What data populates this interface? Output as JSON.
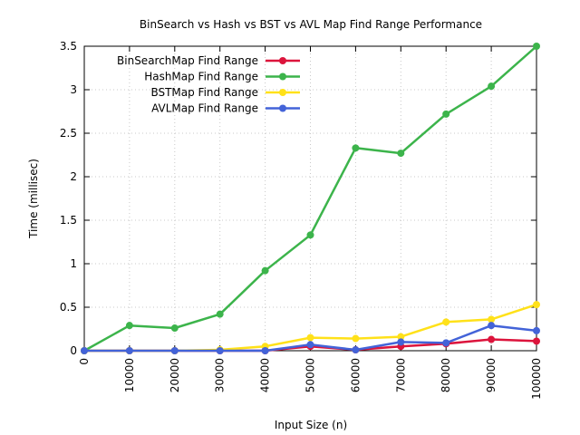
{
  "chart_data": {
    "type": "line",
    "title": "BinSearch vs Hash vs BST vs AVL Map Find Range Performance",
    "xlabel": "Input Size (n)",
    "ylabel": "Time (millisec)",
    "xlim": [
      0,
      100000
    ],
    "ylim": [
      0,
      3.5
    ],
    "x_ticks": [
      0,
      10000,
      20000,
      30000,
      40000,
      50000,
      60000,
      70000,
      80000,
      90000,
      100000
    ],
    "y_ticks": [
      0,
      0.5,
      1,
      1.5,
      2,
      2.5,
      3,
      3.5
    ],
    "x_tick_labels": [
      "0",
      "10000",
      "20000",
      "30000",
      "40000",
      "50000",
      "60000",
      "70000",
      "80000",
      "90000",
      "100000"
    ],
    "y_tick_labels": [
      "0",
      "0.5",
      "1",
      "1.5",
      "2",
      "2.5",
      "3",
      "3.5"
    ],
    "grid": true,
    "legend_position": "top-left",
    "x": [
      0,
      10000,
      20000,
      30000,
      40000,
      50000,
      60000,
      70000,
      80000,
      90000,
      100000
    ],
    "series": [
      {
        "name": "BinSearchMap Find Range",
        "color": "#dc143c",
        "values": [
          0,
          0,
          0,
          0,
          0,
          0.05,
          0.01,
          0.05,
          0.08,
          0.13,
          0.11
        ]
      },
      {
        "name": "HashMap Find Range",
        "color": "#3cb44b",
        "values": [
          0,
          0.29,
          0.26,
          0.42,
          0.92,
          1.33,
          2.33,
          2.27,
          2.72,
          3.04,
          3.5
        ]
      },
      {
        "name": "BSTMap Find Range",
        "color": "#ffe119",
        "values": [
          0,
          0,
          0,
          0.01,
          0.05,
          0.15,
          0.14,
          0.16,
          0.33,
          0.36,
          0.53
        ]
      },
      {
        "name": "AVLMap Find Range",
        "color": "#4363d8",
        "values": [
          0,
          0,
          0,
          0,
          0,
          0.07,
          0.01,
          0.1,
          0.09,
          0.29,
          0.23
        ]
      }
    ]
  }
}
